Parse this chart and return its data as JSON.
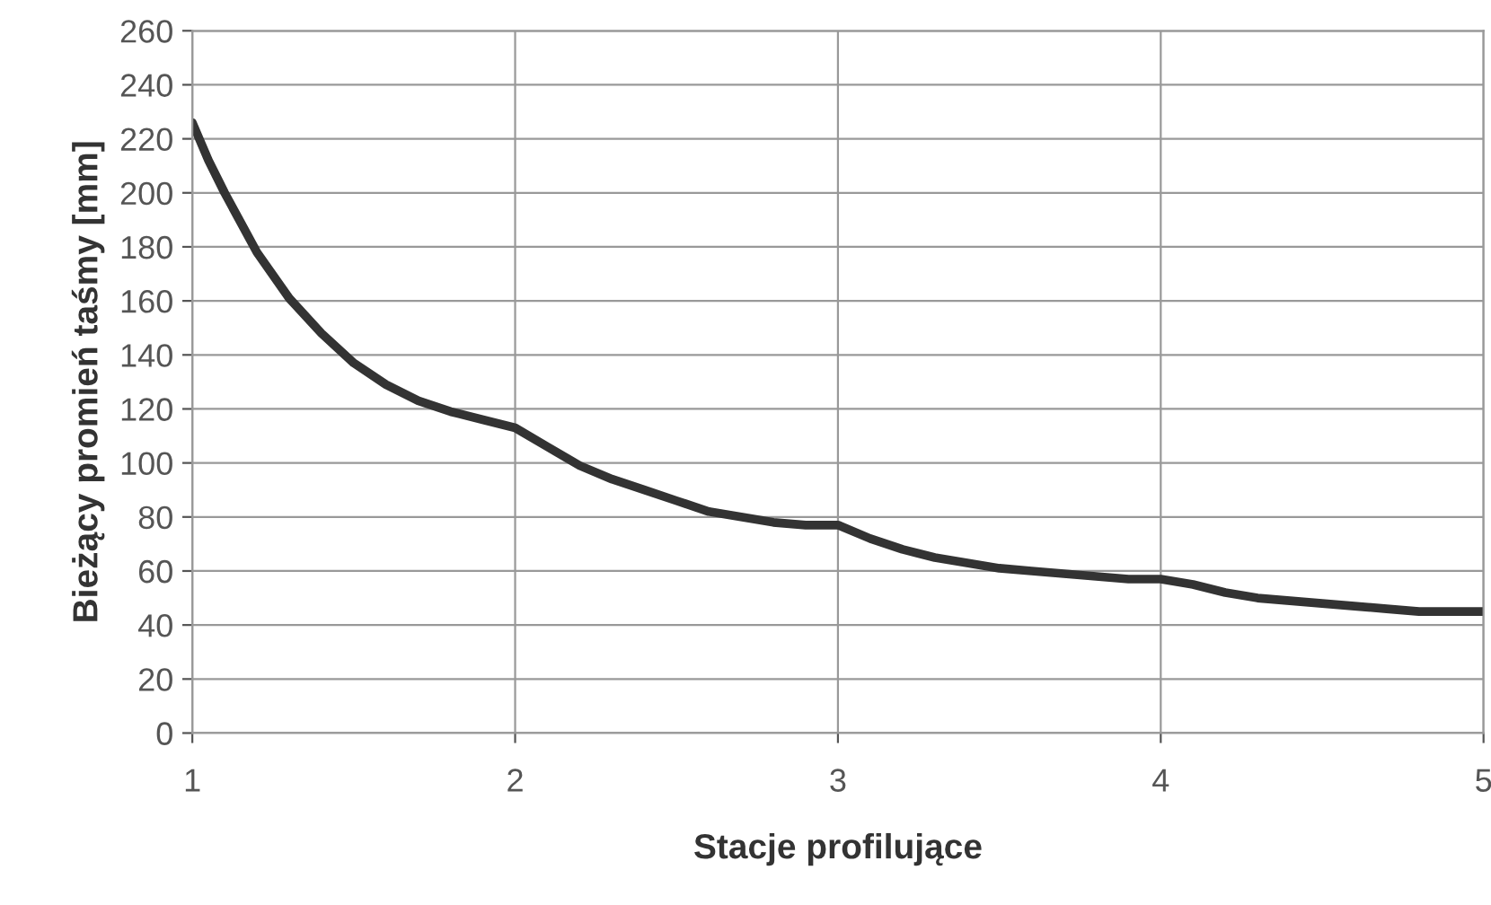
{
  "chart_data": {
    "type": "line",
    "xlabel": "Stacje profilujące",
    "ylabel": "Bieżący promień taśmy [mm]",
    "x": [
      1,
      1.05,
      1.1,
      1.2,
      1.3,
      1.4,
      1.5,
      1.6,
      1.7,
      1.8,
      1.9,
      2,
      2.1,
      2.2,
      2.3,
      2.4,
      2.5,
      2.6,
      2.7,
      2.8,
      2.9,
      3,
      3.1,
      3.2,
      3.3,
      3.4,
      3.5,
      3.6,
      3.7,
      3.8,
      3.9,
      4,
      4.1,
      4.2,
      4.3,
      4.4,
      4.5,
      4.6,
      4.7,
      4.8,
      4.9,
      5
    ],
    "series": [
      {
        "color": "#333333",
        "values": [
          226,
          212,
          200,
          178,
          161,
          148,
          137,
          129,
          123,
          119,
          116,
          113,
          106,
          99,
          94,
          90,
          86,
          82,
          80,
          78,
          77,
          77,
          72,
          68,
          65,
          63,
          61,
          60,
          59,
          58,
          57,
          57,
          55,
          52,
          50,
          49,
          48,
          47,
          46,
          45,
          45,
          45
        ]
      }
    ],
    "xlim": [
      1,
      5
    ],
    "xticks": [
      1,
      2,
      3,
      4,
      5
    ],
    "ylim": [
      0,
      260
    ],
    "yticks": [
      0,
      20,
      40,
      60,
      80,
      100,
      120,
      140,
      160,
      180,
      200,
      220,
      240,
      260
    ],
    "grid": true,
    "marker": "none",
    "line_style": "solid",
    "legend": false
  }
}
